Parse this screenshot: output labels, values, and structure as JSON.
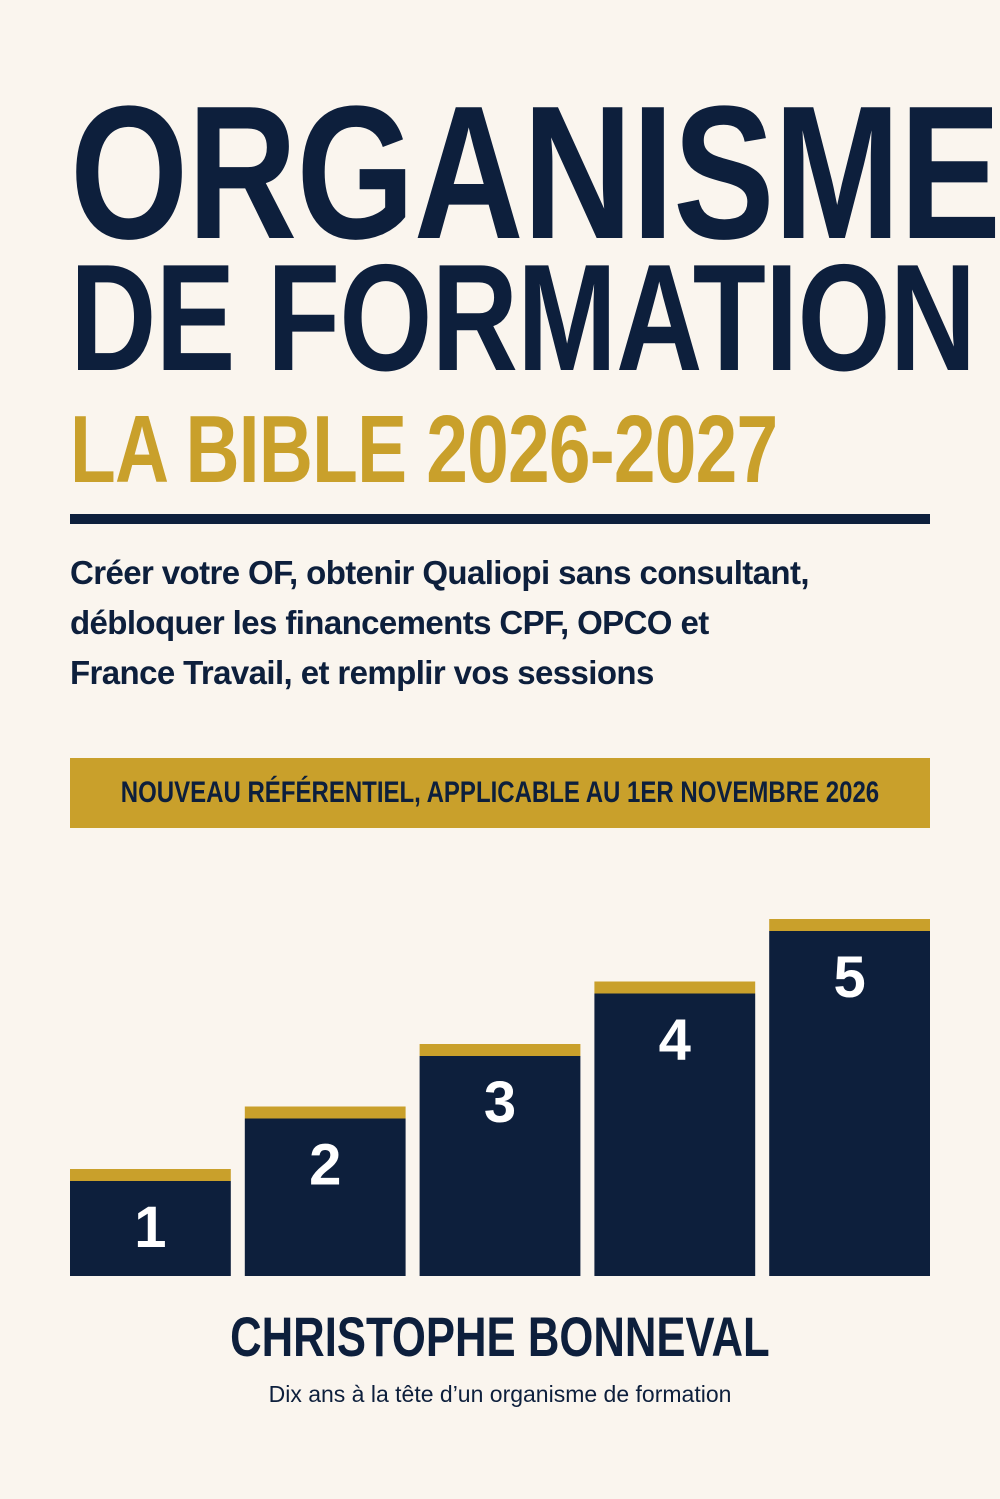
{
  "book": {
    "title_line_1": "ORGANISME",
    "title_line_2": "DE FORMATION",
    "subtitle": "LA BIBLE 2026-2027",
    "tagline": [
      "Créer votre OF, obtenir Qualiopi sans consultant,",
      "débloquer les financements CPF, OPCO et",
      "France Travail, et remplir vos sessions"
    ],
    "banner": "NOUVEAU RÉFÉRENTIEL, APPLICABLE AU 1ER NOVEMBRE 2026",
    "author": "CHRISTOPHE BONNEVAL",
    "author_tagline": "Dix ans à la tête d’un organisme de formation"
  },
  "colors": {
    "background": "#faf5ee",
    "navy": "#0d1f3c",
    "gold": "#c9a02b",
    "white": "#ffffff"
  },
  "steps": {
    "labels": [
      "1",
      "2",
      "3",
      "4",
      "5"
    ],
    "levels": [
      1,
      2,
      3,
      4,
      5
    ]
  }
}
